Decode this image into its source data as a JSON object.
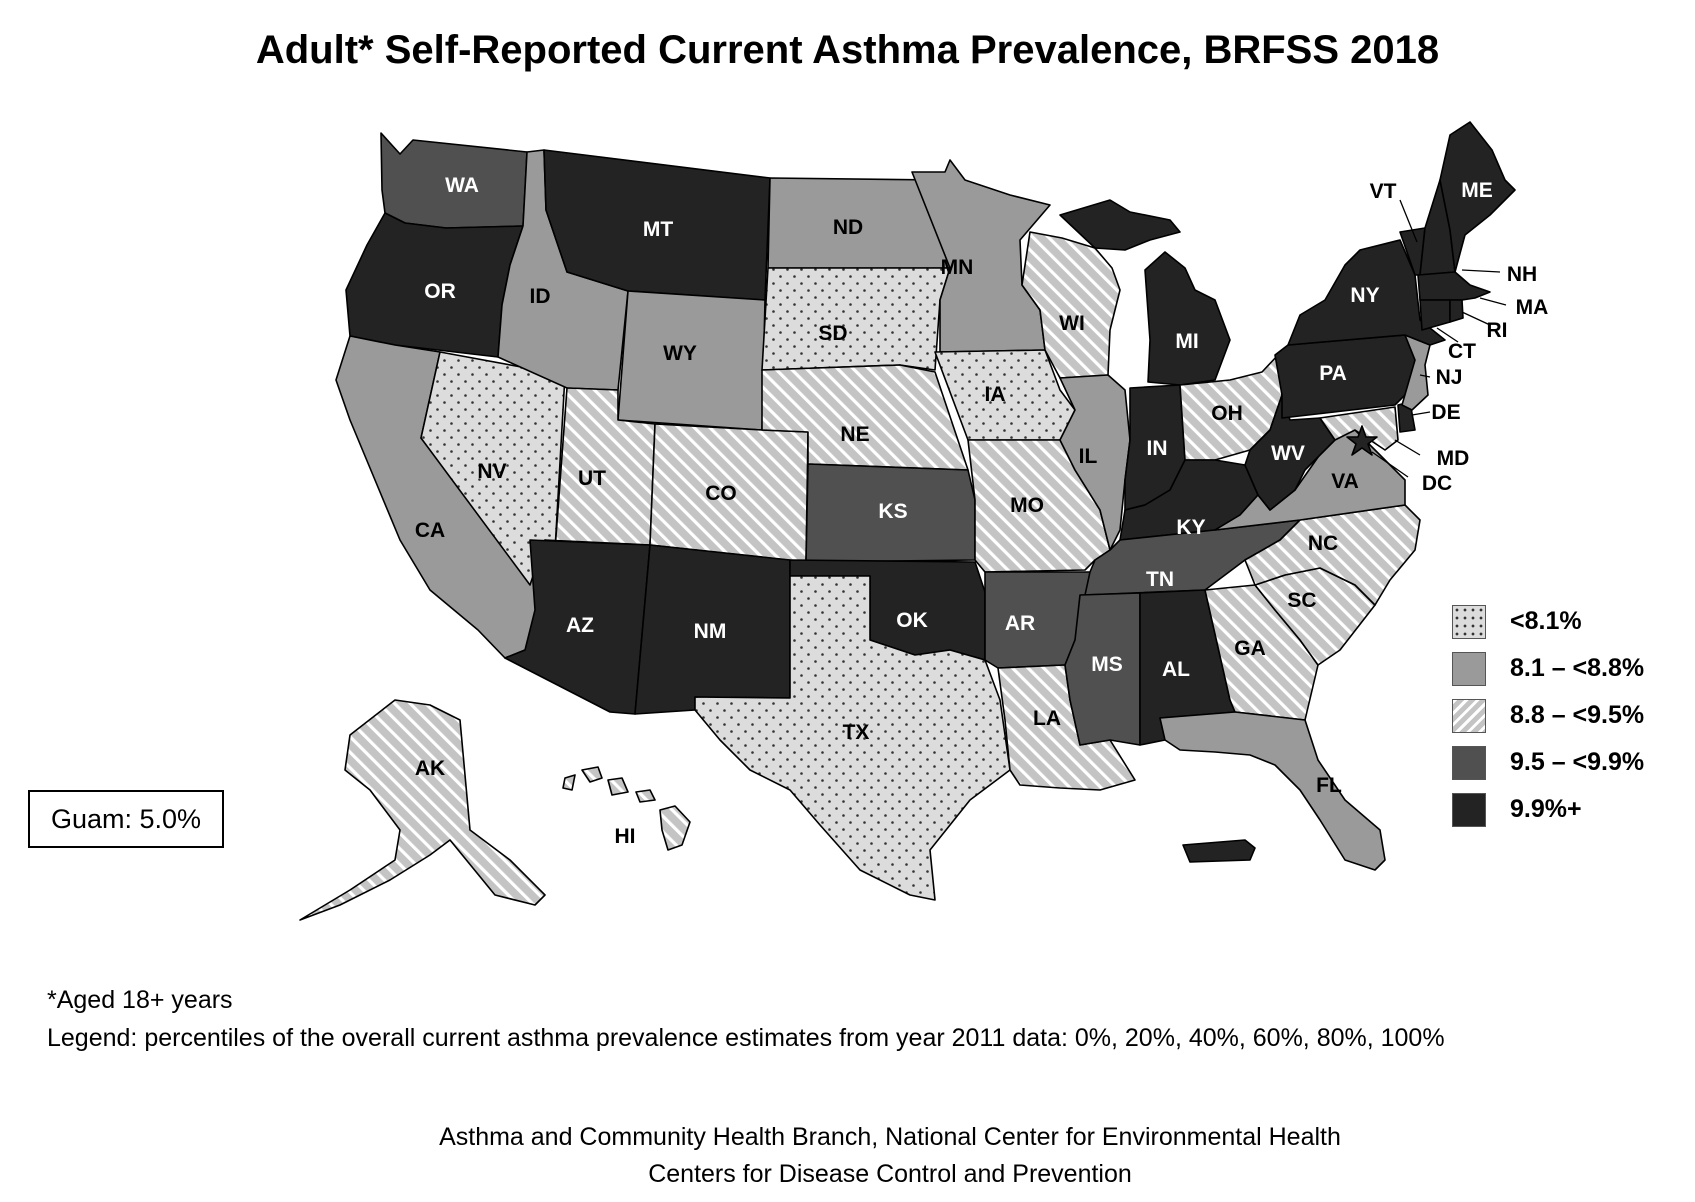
{
  "title": "Adult* Self-Reported Current Asthma Prevalence, BRFSS 2018",
  "legend": {
    "items": [
      {
        "label": "<8.1%",
        "pattern": "dots",
        "color": "#dcdcdc"
      },
      {
        "label": "8.1 – <8.8%",
        "pattern": "solid",
        "color": "#9a9a9a"
      },
      {
        "label": "8.8 – <9.5%",
        "pattern": "hatch",
        "color": "#c4c4c4"
      },
      {
        "label": "9.5 – <9.9%",
        "pattern": "solid",
        "color": "#505050"
      },
      {
        "label": "9.9%+",
        "pattern": "solid",
        "color": "#232323"
      }
    ]
  },
  "states": {
    "WA": 3,
    "OR": 4,
    "CA": 1,
    "NV": 0,
    "ID": 1,
    "MT": 4,
    "WY": 1,
    "UT": 2,
    "AZ": 4,
    "CO": 2,
    "NM": 4,
    "ND": 1,
    "SD": 0,
    "NE": 2,
    "KS": 3,
    "OK": 4,
    "TX": 0,
    "MN": 1,
    "IA": 0,
    "MO": 2,
    "AR": 3,
    "LA": 2,
    "WI": 2,
    "IL": 1,
    "MI": 4,
    "IN": 4,
    "OH": 2,
    "KY": 4,
    "TN": 3,
    "MS": 3,
    "AL": 4,
    "GA": 2,
    "FL": 1,
    "SC": 2,
    "NC": 2,
    "VA": 1,
    "WV": 4,
    "PA": 4,
    "NY": 4,
    "VT": 4,
    "NH": 4,
    "ME": 4,
    "MA": 4,
    "RI": 4,
    "CT": 4,
    "NJ": 1,
    "DE": 4,
    "MD": 2,
    "DC": 4,
    "AK": 2,
    "HI": 2,
    "PR": 4
  },
  "callout_labels": [
    "VT",
    "NH",
    "MA",
    "RI",
    "CT",
    "NJ",
    "DE",
    "MD",
    "DC"
  ],
  "guam": "Guam: 5.0%",
  "notes": {
    "age": "*Aged 18+ years",
    "legend_note": "Legend: percentiles of the overall current asthma prevalence estimates from year 2011 data: 0%, 20%, 40%, 60%, 80%, 100%"
  },
  "credits": {
    "line1": "Asthma and Community Health Branch, National Center for Environmental Health",
    "line2": "Centers for Disease Control and Prevention"
  }
}
